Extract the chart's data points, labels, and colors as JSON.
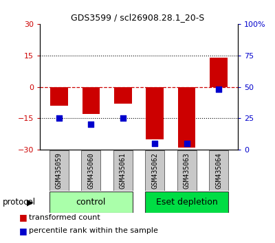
{
  "title": "GDS3599 / scl26908.28.1_20-S",
  "samples": [
    "GSM435059",
    "GSM435060",
    "GSM435061",
    "GSM435062",
    "GSM435063",
    "GSM435064"
  ],
  "red_values": [
    -9.0,
    -13.0,
    -8.0,
    -25.0,
    -29.0,
    14.0
  ],
  "blue_values_pct": [
    25,
    20,
    25,
    5,
    5,
    48
  ],
  "ylim_left": [
    -30,
    30
  ],
  "ylim_right": [
    0,
    100
  ],
  "yticks_left": [
    -30,
    -15,
    0,
    15,
    30
  ],
  "yticks_right": [
    0,
    25,
    50,
    75,
    100
  ],
  "ytick_labels_right": [
    "0",
    "25",
    "50",
    "75",
    "100%"
  ],
  "protocol_groups": [
    {
      "label": "control",
      "indices": [
        0,
        1,
        2
      ],
      "color": "#aaffaa"
    },
    {
      "label": "Eset depletion",
      "indices": [
        3,
        4,
        5
      ],
      "color": "#00dd44"
    }
  ],
  "bar_color": "#cc0000",
  "dot_color": "#0000cc",
  "background_color": "#ffffff",
  "label_area_color": "#c8c8c8",
  "legend_red_label": "transformed count",
  "legend_blue_label": "percentile rank within the sample",
  "bar_width": 0.55,
  "dot_size": 40,
  "title_fontsize": 9,
  "tick_fontsize": 8,
  "sample_fontsize": 7,
  "group_fontsize": 9,
  "legend_fontsize": 8
}
